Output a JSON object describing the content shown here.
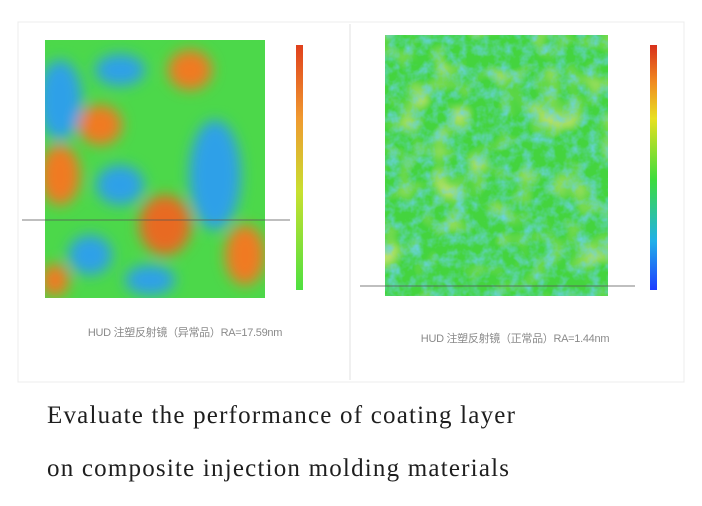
{
  "figure": {
    "panels": [
      {
        "label": "HUD 注塑反射镜（异常品）RA=17.59nm"
      },
      {
        "label": "HUD 注塑反射镜（正常品）RA=1.44nm"
      }
    ]
  },
  "caption": {
    "lines": [
      "Evaluate the performance of coating layer",
      "on composite injection molding materials"
    ]
  }
}
